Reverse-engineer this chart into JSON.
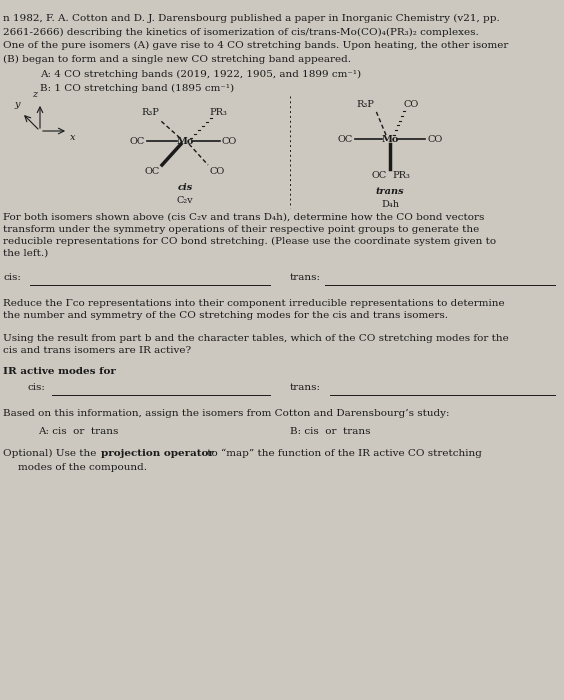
{
  "background_color": "#ccc8bf",
  "text_color": "#1a1a1a",
  "fig_width": 5.64,
  "fig_height": 7.0,
  "dpi": 100,
  "top_text_line1": "n 1982, F. A. Cotton and D. J. Darensbourg published a paper in Inorganic Chemistry (v21, pp.",
  "top_text_line2": "2661-2666) describing the kinetics of isomerization of cis/trans-Mo(CO)₄(PR₃)₂ complexes.",
  "top_text_line3": "One of the pure isomers (A) gave rise to 4 CO stretching bands. Upon heating, the other isomer",
  "top_text_line4": "(B) began to form and a single new CO stretching band appeared.",
  "line_A": "A: 4 CO stretching bands (2019, 1922, 1905, and 1899 cm⁻¹)",
  "line_B": "B: 1 CO stretching band (1895 cm⁻¹)",
  "q1_text": "For both isomers shown above (cis C₂v and trans D₄h), determine how the CO bond vectors\ntransform under the symmetry operations of their respective point groups to generate the\nreducible representations for CO bond stretching. (Please use the coordinate system given to\nthe left.)",
  "q2_text": "Reduce the Γco representations into their component irreducible representations to determine\nthe number and symmetry of the CO stretching modes for the cis and trans isomers.",
  "q3_text": "Using the result from part b and the character tables, which of the CO stretching modes for the\ncis and trans isomers are IR active?",
  "ir_header": "IR active modes for",
  "assign_text": "Based on this information, assign the isomers from Cotton and Darensbourg’s study:",
  "opt_pre": "Optional) Use the ",
  "opt_bold": "projection operator",
  "opt_post": " to “map” the function of the IR active CO stretching\nmodes of the compound."
}
